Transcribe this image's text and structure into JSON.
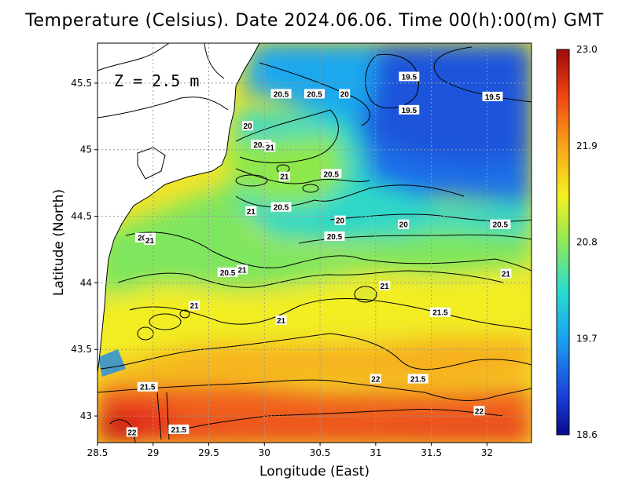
{
  "title": "Temperature (Celsius). Date 2024.06.06. Time 00(h):00(m) GMT",
  "depth_label": "Z = 2.5 m",
  "colors": {
    "land": "#ffffff",
    "contour": "#000000",
    "grid": "#9a9a9a",
    "scale": [
      "#0a0a8c",
      "#1a4fe0",
      "#17b6f0",
      "#35e0a0",
      "#a8ee4a",
      "#f6ee1e",
      "#f8a61a",
      "#f04010",
      "#a80c0c"
    ]
  },
  "chart_data": {
    "type": "heatmap",
    "title": "Temperature (Celsius). Date 2024.06.06. Time 00(h):00(m) GMT",
    "xlabel": "Longitude (East)",
    "ylabel": "Latitude (North)",
    "xlim": [
      28.5,
      32.4
    ],
    "ylim": [
      42.8,
      45.8
    ],
    "xticks": [
      "28.5",
      "29",
      "29.5",
      "30",
      "30.5",
      "31",
      "31.5",
      "32"
    ],
    "yticks": [
      "43",
      "43.5",
      "44",
      "44.5",
      "45",
      "45.5"
    ],
    "grid": true,
    "colorbar": {
      "labels": [
        "23.0",
        "21.9",
        "20.8",
        "19.7",
        "18.6"
      ],
      "values": [
        23.0,
        21.9,
        20.8,
        19.7,
        18.6
      ],
      "min": 18.6,
      "max": 23.0,
      "placement": "right"
    },
    "contour_labels": [
      {
        "text": "19.5",
        "lon": 31.3,
        "lat": 45.55
      },
      {
        "text": "19.5",
        "lon": 32.05,
        "lat": 45.4
      },
      {
        "text": "19.5",
        "lon": 31.3,
        "lat": 45.3
      },
      {
        "text": "20",
        "lon": 30.72,
        "lat": 45.42
      },
      {
        "text": "20.5",
        "lon": 30.15,
        "lat": 45.42
      },
      {
        "text": "20.5",
        "lon": 30.45,
        "lat": 45.42
      },
      {
        "text": "20",
        "lon": 29.85,
        "lat": 45.18
      },
      {
        "text": "20.5",
        "lon": 29.97,
        "lat": 45.04
      },
      {
        "text": "21",
        "lon": 30.05,
        "lat": 45.02
      },
      {
        "text": "21",
        "lon": 30.18,
        "lat": 44.8
      },
      {
        "text": "20.5",
        "lon": 30.6,
        "lat": 44.82
      },
      {
        "text": "20.5",
        "lon": 30.15,
        "lat": 44.57
      },
      {
        "text": "21",
        "lon": 29.88,
        "lat": 44.54
      },
      {
        "text": "20",
        "lon": 30.68,
        "lat": 44.47
      },
      {
        "text": "20",
        "lon": 31.25,
        "lat": 44.44
      },
      {
        "text": "20.5",
        "lon": 32.12,
        "lat": 44.44
      },
      {
        "text": "20.5",
        "lon": 30.63,
        "lat": 44.35
      },
      {
        "text": "20.5",
        "lon": 28.93,
        "lat": 44.34
      },
      {
        "text": "21",
        "lon": 28.97,
        "lat": 44.32
      },
      {
        "text": "21",
        "lon": 29.8,
        "lat": 44.1
      },
      {
        "text": "20.5",
        "lon": 29.67,
        "lat": 44.08
      },
      {
        "text": "21",
        "lon": 32.17,
        "lat": 44.07
      },
      {
        "text": "21",
        "lon": 31.08,
        "lat": 43.98
      },
      {
        "text": "21",
        "lon": 29.37,
        "lat": 43.83
      },
      {
        "text": "21.5",
        "lon": 31.58,
        "lat": 43.78
      },
      {
        "text": "21",
        "lon": 30.15,
        "lat": 43.72
      },
      {
        "text": "22",
        "lon": 31.0,
        "lat": 43.28
      },
      {
        "text": "21.5",
        "lon": 31.38,
        "lat": 43.28
      },
      {
        "text": "21.5",
        "lon": 28.95,
        "lat": 43.22
      },
      {
        "text": "22",
        "lon": 31.93,
        "lat": 43.04
      },
      {
        "text": "21.5",
        "lon": 29.23,
        "lat": 42.9
      },
      {
        "text": "22",
        "lon": 28.81,
        "lat": 42.88
      }
    ]
  }
}
